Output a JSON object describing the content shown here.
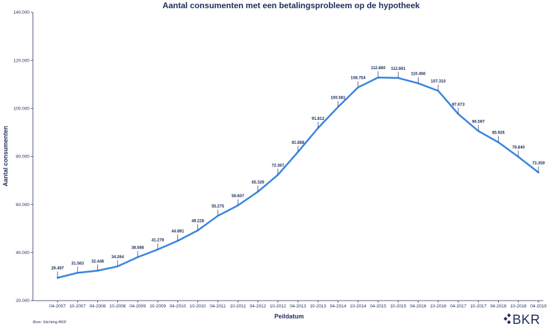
{
  "chart_data": {
    "type": "line",
    "title": "Aantal consumenten met een betalingsprobleem op de hypotheek",
    "xlabel": "Peildatum",
    "ylabel": "Aantal consumenten",
    "ylim": [
      20000,
      140000
    ],
    "yticks": [
      20000,
      40000,
      60000,
      80000,
      100000,
      120000,
      140000
    ],
    "ytick_labels": [
      "20.000",
      "40.000",
      "60.000",
      "80.000",
      "100.000",
      "120.000",
      "140.000"
    ],
    "categories": [
      "04-2007",
      "10-2007",
      "04-2008",
      "10-2008",
      "04-2009",
      "10-2009",
      "04-2010",
      "10-2010",
      "04-2011",
      "10-2011",
      "04-2012",
      "10-2012",
      "04-2013",
      "10-2013",
      "04-2014",
      "10-2014",
      "04-2015",
      "10-2015",
      "04-2016",
      "10-2016",
      "04-2017",
      "10-2017",
      "04-2018",
      "10-2018",
      "04-2019"
    ],
    "values": [
      29497,
      31563,
      32448,
      34264,
      38086,
      41279,
      44891,
      49228,
      55275,
      59607,
      65329,
      72367,
      81888,
      91812,
      100581,
      108754,
      112860,
      112681,
      110466,
      107310,
      97673,
      90597,
      85926,
      79840,
      73359
    ],
    "value_labels": [
      "29.497",
      "31.563",
      "32.448",
      "34.264",
      "38.086",
      "41.279",
      "44.891",
      "49.228",
      "55.275",
      "59.607",
      "65.329",
      "72.367",
      "81.888",
      "91.812",
      "100.581",
      "108.754",
      "112.860",
      "112.681",
      "110.466",
      "107.310",
      "97.673",
      "90.597",
      "85.926",
      "79.840",
      "73.359"
    ],
    "grid": false,
    "line_color": "#3b86e0"
  },
  "source": "Bron: Stichting BKR",
  "logo": {
    "text": "BKR",
    "color": "#1f2d5a"
  }
}
